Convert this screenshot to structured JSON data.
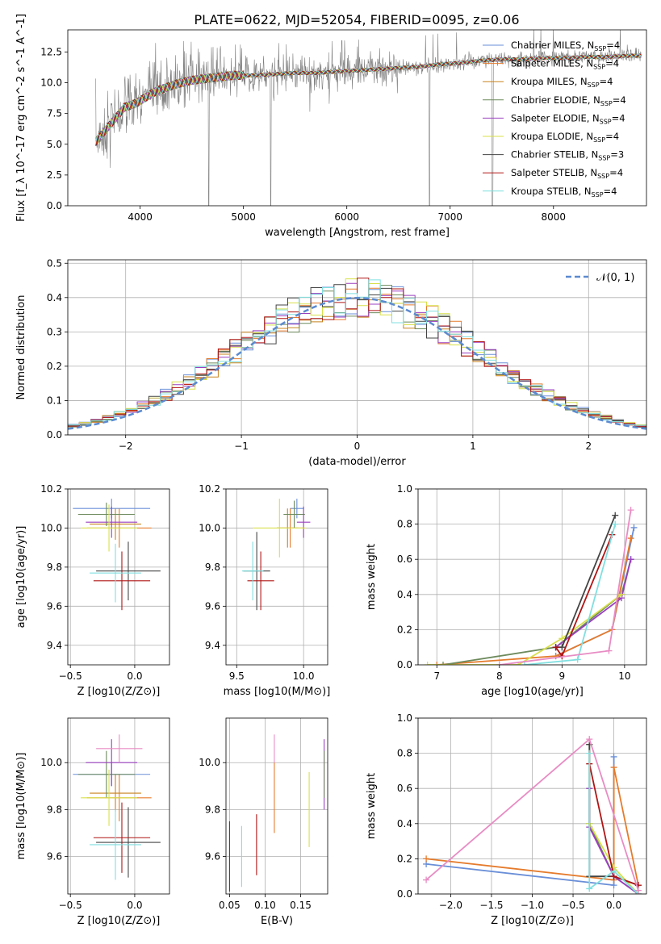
{
  "figure": {
    "title": "PLATE=0622, MJD=52054, FIBERID=0095, z=0.06"
  },
  "series_styles": [
    {
      "name": "Chabrier MILES, N_SSP=4",
      "color": "#6a8fd8"
    },
    {
      "name": "Salpeter MILES, N_SSP=4",
      "color": "#e57b2c"
    },
    {
      "name": "Kroupa MILES, N_SSP=4",
      "color": "#c8821e"
    },
    {
      "name": "Chabrier ELODIE, N_SSP=4",
      "color": "#6d8a5c"
    },
    {
      "name": "Salpeter ELODIE, N_SSP=4",
      "color": "#9a3fbf"
    },
    {
      "name": "Kroupa ELODIE, N_SSP=4",
      "color": "#d8e04a"
    },
    {
      "name": "Chabrier STELIB, N_SSP=3",
      "color": "#444444"
    },
    {
      "name": "Salpeter STELIB, N_SSP=4",
      "color": "#b01515"
    },
    {
      "name": "Kroupa STELIB, N_SSP=4",
      "color": "#80dfe0"
    }
  ],
  "chart_data": [
    {
      "id": "spectrum",
      "type": "line",
      "xlabel": "wavelength [Angstrom, rest frame]",
      "ylabel": "Flux [f_λ 10^-17 erg cm^-2 s^-1 A^-1]",
      "xlim": [
        3300,
        8900
      ],
      "ylim": [
        0,
        14.3
      ],
      "xticks": [
        4000,
        5000,
        6000,
        7000,
        8000
      ],
      "yticks": [
        0.0,
        2.5,
        5.0,
        7.5,
        10.0,
        12.5
      ],
      "grid": false,
      "legend": "right",
      "data_color": "#808080",
      "model_points": [
        [
          3570,
          5.2
        ],
        [
          3650,
          6.0
        ],
        [
          3750,
          7.0
        ],
        [
          3850,
          8.0
        ],
        [
          3950,
          8.3
        ],
        [
          4050,
          8.8
        ],
        [
          4150,
          9.3
        ],
        [
          4250,
          9.6
        ],
        [
          4350,
          9.9
        ],
        [
          4500,
          10.2
        ],
        [
          4700,
          10.4
        ],
        [
          4900,
          10.6
        ],
        [
          5100,
          10.6
        ],
        [
          5300,
          10.7
        ],
        [
          5500,
          10.8
        ],
        [
          5700,
          10.8
        ],
        [
          5900,
          10.9
        ],
        [
          6100,
          11.0
        ],
        [
          6300,
          11.1
        ],
        [
          6500,
          11.2
        ],
        [
          6700,
          11.3
        ],
        [
          6900,
          11.5
        ],
        [
          7100,
          11.6
        ],
        [
          7300,
          11.8
        ],
        [
          7500,
          11.9
        ],
        [
          7700,
          11.9
        ],
        [
          7900,
          12.0
        ],
        [
          8100,
          12.0
        ],
        [
          8300,
          12.1
        ],
        [
          8500,
          12.1
        ],
        [
          8750,
          12.2
        ]
      ]
    },
    {
      "id": "residuals",
      "type": "step",
      "xlabel": "(data-model)/error",
      "ylabel": "Normed distribution",
      "xlim": [
        -2.5,
        2.5
      ],
      "ylim": [
        0,
        0.51
      ],
      "xticks": [
        -2,
        -1,
        0,
        1,
        2
      ],
      "yticks": [
        0.0,
        0.1,
        0.2,
        0.3,
        0.4,
        0.5
      ],
      "grid": true,
      "legend": "top-right",
      "reference": {
        "name": "𝒩(0, 1)",
        "color": "#5b8ad0"
      },
      "bin_width": 0.1
    },
    {
      "id": "age-vs-Z",
      "type": "errorbar",
      "xlabel": "Z [log10(Z/Z⊙)]",
      "ylabel": "age [log10(age/yr)]",
      "xlim": [
        -0.52,
        0.27
      ],
      "ylim": [
        9.3,
        10.2
      ],
      "xticks": [
        -0.5,
        0.0
      ],
      "yticks": [
        9.4,
        9.6,
        9.8,
        10.0,
        10.2
      ],
      "grid": true,
      "points": [
        {
          "s": 0,
          "x": -0.18,
          "y": 10.1,
          "xerr": 0.3,
          "yerr": 0.05
        },
        {
          "s": 1,
          "x": -0.12,
          "y": 10.0,
          "xerr": 0.25,
          "yerr": 0.1
        },
        {
          "s": 2,
          "x": -0.15,
          "y": 10.02,
          "xerr": 0.2,
          "yerr": 0.08
        },
        {
          "s": 3,
          "x": -0.22,
          "y": 10.07,
          "xerr": 0.22,
          "yerr": 0.06
        },
        {
          "s": 4,
          "x": -0.18,
          "y": 10.03,
          "xerr": 0.2,
          "yerr": 0.08
        },
        {
          "s": 5,
          "x": -0.2,
          "y": 10.0,
          "xerr": 0.22,
          "yerr": 0.12
        },
        {
          "s": 6,
          "x": -0.05,
          "y": 9.78,
          "xerr": 0.25,
          "yerr": 0.15
        },
        {
          "s": 7,
          "x": -0.1,
          "y": 9.73,
          "xerr": 0.22,
          "yerr": 0.15
        },
        {
          "s": 8,
          "x": -0.15,
          "y": 9.77,
          "xerr": 0.2,
          "yerr": 0.15
        }
      ]
    },
    {
      "id": "age-vs-mass",
      "type": "errorbar",
      "xlabel": "mass [log10(M/M⊙)]",
      "ylabel": "",
      "xlim": [
        9.42,
        10.18
      ],
      "ylim": [
        9.3,
        10.2
      ],
      "xticks": [
        9.5,
        10.0
      ],
      "yticks": [
        9.4,
        9.6,
        9.8,
        10.0,
        10.2
      ],
      "grid": true,
      "points": [
        {
          "s": 0,
          "x": 9.95,
          "y": 10.1,
          "xerr": 0.05,
          "yerr": 0.05
        },
        {
          "s": 1,
          "x": 9.9,
          "y": 10.0,
          "xerr": 0.1,
          "yerr": 0.1
        },
        {
          "s": 2,
          "x": 9.88,
          "y": 10.0,
          "xerr": 0.08,
          "yerr": 0.1
        },
        {
          "s": 3,
          "x": 9.93,
          "y": 10.07,
          "xerr": 0.08,
          "yerr": 0.07
        },
        {
          "s": 4,
          "x": 10.0,
          "y": 10.03,
          "xerr": 0.05,
          "yerr": 0.08
        },
        {
          "s": 5,
          "x": 9.82,
          "y": 10.0,
          "xerr": 0.2,
          "yerr": 0.15
        },
        {
          "s": 6,
          "x": 9.65,
          "y": 9.78,
          "xerr": 0.1,
          "yerr": 0.2
        },
        {
          "s": 7,
          "x": 9.68,
          "y": 9.73,
          "xerr": 0.1,
          "yerr": 0.15
        },
        {
          "s": 8,
          "x": 9.62,
          "y": 9.78,
          "xerr": 0.08,
          "yerr": 0.15
        }
      ]
    },
    {
      "id": "massweight-vs-age",
      "type": "line",
      "xlabel": "age [log10(age/yr)]",
      "ylabel": "mass weight",
      "xlim": [
        6.7,
        10.35
      ],
      "ylim": [
        0,
        1.0
      ],
      "xticks": [
        7,
        8,
        9,
        10
      ],
      "yticks": [
        0.0,
        0.2,
        0.4,
        0.6,
        0.8,
        1.0
      ],
      "grid": true,
      "series": [
        {
          "s": 0,
          "x": [
            8.9,
            9.8,
            10.15
          ],
          "y": [
            0.05,
            0.2,
            0.78
          ]
        },
        {
          "s": 1,
          "x": [
            7.0,
            8.9,
            9.8,
            10.1
          ],
          "y": [
            0.0,
            0.05,
            0.2,
            0.72
          ]
        },
        {
          "s": 3,
          "x": [
            7.1,
            8.9,
            9.95,
            10.1
          ],
          "y": [
            0.0,
            0.1,
            0.4,
            0.6
          ]
        },
        {
          "s": 4,
          "x": [
            8.9,
            9.95,
            10.1
          ],
          "y": [
            0.1,
            0.38,
            0.6
          ]
        },
        {
          "s": 5,
          "x": [
            6.85,
            8.3,
            9.0,
            9.95
          ],
          "y": [
            0.0,
            0.0,
            0.15,
            0.4
          ]
        },
        {
          "s": 6,
          "x": [
            8.9,
            9.0,
            9.85
          ],
          "y": [
            0.1,
            0.1,
            0.85
          ]
        },
        {
          "s": 7,
          "x": [
            8.9,
            9.0,
            9.8
          ],
          "y": [
            0.1,
            0.05,
            0.74
          ]
        },
        {
          "s": 8,
          "x": [
            8.4,
            9.25,
            9.85
          ],
          "y": [
            0.0,
            0.03,
            0.8
          ]
        },
        {
          "s": 9,
          "x": [
            8.0,
            9.75,
            10.1
          ],
          "y": [
            0.0,
            0.08,
            0.88
          ]
        }
      ]
    },
    {
      "id": "mass-vs-Z",
      "type": "errorbar",
      "xlabel": "Z [log10(Z/Z⊙)]",
      "ylabel": "mass [log10(M/M⊙)]",
      "xlim": [
        -0.52,
        0.27
      ],
      "ylim": [
        9.44,
        10.19
      ],
      "xticks": [
        -0.5,
        0.0
      ],
      "yticks": [
        9.6,
        9.8,
        10.0
      ],
      "grid": true,
      "points": [
        {
          "s": 0,
          "x": -0.18,
          "y": 9.95,
          "xerr": 0.3,
          "yerr": 0.05
        },
        {
          "s": 1,
          "x": -0.12,
          "y": 9.85,
          "xerr": 0.25,
          "yerr": 0.1
        },
        {
          "s": 2,
          "x": -0.15,
          "y": 9.87,
          "xerr": 0.2,
          "yerr": 0.08
        },
        {
          "s": 3,
          "x": -0.22,
          "y": 9.95,
          "xerr": 0.22,
          "yerr": 0.1
        },
        {
          "s": 4,
          "x": -0.18,
          "y": 10.0,
          "xerr": 0.2,
          "yerr": 0.1
        },
        {
          "s": 5,
          "x": -0.2,
          "y": 9.85,
          "xerr": 0.22,
          "yerr": 0.12
        },
        {
          "s": 6,
          "x": -0.05,
          "y": 9.66,
          "xerr": 0.25,
          "yerr": 0.15
        },
        {
          "s": 7,
          "x": -0.1,
          "y": 9.68,
          "xerr": 0.22,
          "yerr": 0.15
        },
        {
          "s": 8,
          "x": -0.15,
          "y": 9.65,
          "xerr": 0.2,
          "yerr": 0.15
        },
        {
          "s": 9,
          "x": -0.12,
          "y": 10.06,
          "xerr": 0.18,
          "yerr": 0.06
        }
      ]
    },
    {
      "id": "mass-vs-EBV",
      "type": "errorbar",
      "xlabel": "E(B-V)",
      "ylabel": "",
      "xlim": [
        0.045,
        0.188
      ],
      "ylim": [
        9.44,
        10.19
      ],
      "xticks": [
        0.05,
        0.1,
        0.15
      ],
      "yticks": [
        9.6,
        9.8,
        10.0
      ],
      "grid": true,
      "points": [
        {
          "s": 6,
          "x": 0.05,
          "y": 9.6,
          "xerr": 0,
          "yerr": 0.15
        },
        {
          "s": 8,
          "x": 0.067,
          "y": 9.6,
          "xerr": 0,
          "yerr": 0.13
        },
        {
          "s": 7,
          "x": 0.088,
          "y": 9.65,
          "xerr": 0,
          "yerr": 0.13
        },
        {
          "s": 1,
          "x": 0.113,
          "y": 9.85,
          "xerr": 0,
          "yerr": 0.15
        },
        {
          "s": 9,
          "x": 0.113,
          "y": 10.06,
          "xerr": 0,
          "yerr": 0.06
        },
        {
          "s": 5,
          "x": 0.162,
          "y": 9.8,
          "xerr": 0,
          "yerr": 0.16
        },
        {
          "s": 4,
          "x": 0.183,
          "y": 9.95,
          "xerr": 0,
          "yerr": 0.15
        },
        {
          "s": 3,
          "x": 0.183,
          "y": 9.95,
          "xerr": 0,
          "yerr": 0.1
        }
      ]
    },
    {
      "id": "massweight-vs-Z",
      "type": "line",
      "xlabel": "Z [log10(Z/Z⊙)]",
      "ylabel": "mass weight",
      "xlim": [
        -2.4,
        0.4
      ],
      "ylim": [
        0,
        1.0
      ],
      "xticks": [
        -2.0,
        -1.5,
        -1.0,
        -0.5,
        0.0
      ],
      "yticks": [
        0.0,
        0.2,
        0.4,
        0.6,
        0.8,
        1.0
      ],
      "grid": true,
      "series": [
        {
          "s": 0,
          "x": [
            -2.3,
            0.0,
            0.0
          ],
          "y": [
            0.17,
            0.05,
            0.78
          ]
        },
        {
          "s": 1,
          "x": [
            -2.3,
            0.0,
            0.0,
            0.3
          ],
          "y": [
            0.2,
            0.08,
            0.72,
            0.05
          ]
        },
        {
          "s": 3,
          "x": [
            -0.3,
            -0.3,
            0.0,
            0.3
          ],
          "y": [
            0.85,
            0.4,
            0.1,
            0.0
          ]
        },
        {
          "s": 4,
          "x": [
            -0.3,
            -0.3,
            0.0,
            0.3
          ],
          "y": [
            0.6,
            0.38,
            0.1,
            0.0
          ]
        },
        {
          "s": 5,
          "x": [
            -0.3,
            0.0,
            0.3
          ],
          "y": [
            0.4,
            0.15,
            0.0
          ]
        },
        {
          "s": 6,
          "x": [
            -0.3,
            -0.3,
            0.0,
            0.3
          ],
          "y": [
            0.85,
            0.1,
            0.1,
            0.05
          ]
        },
        {
          "s": 7,
          "x": [
            -0.3,
            0.0,
            0.3
          ],
          "y": [
            0.74,
            0.1,
            0.05
          ]
        },
        {
          "s": 8,
          "x": [
            -0.3,
            -0.3,
            0.0,
            0.3
          ],
          "y": [
            0.8,
            0.03,
            0.13,
            0.0
          ]
        },
        {
          "s": 9,
          "x": [
            -2.3,
            -0.3,
            0.3
          ],
          "y": [
            0.08,
            0.88,
            0.02
          ]
        }
      ]
    }
  ]
}
